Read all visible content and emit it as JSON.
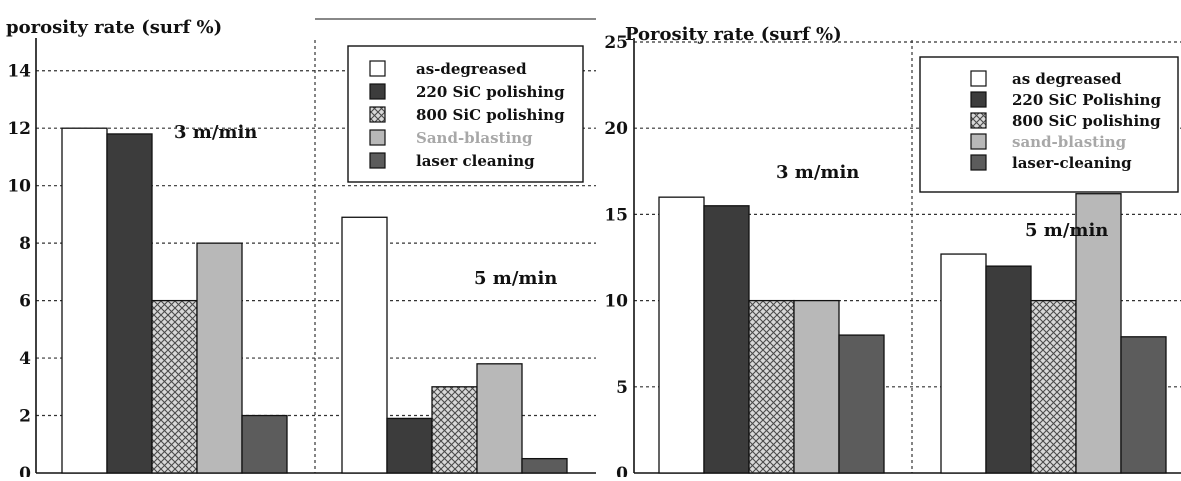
{
  "colors": {
    "background": "#ffffff",
    "axis": "#111111",
    "grid": "#333333",
    "hatch_bg": "#d8d8d8",
    "hatch_line": "#4a4a4a",
    "legend_faded_text": "#a8a8a8"
  },
  "chart_data": [
    {
      "type": "bar",
      "ylabel": "porosity rate (surf %)",
      "ylim": [
        0,
        15
      ],
      "yticks": [
        0,
        2,
        4,
        6,
        8,
        10,
        12,
        14
      ],
      "grid": true,
      "legend_position": "top-right",
      "categories": [
        "3 m/min",
        "5 m/min"
      ],
      "series": [
        {
          "name": "as-degreased",
          "values": [
            12,
            8.9
          ],
          "fill": "#ffffff",
          "pattern": "none"
        },
        {
          "name": "220 SiC polishing",
          "values": [
            11.8,
            1.9
          ],
          "fill": "#3c3c3c",
          "pattern": "none"
        },
        {
          "name": "800 SiC polishing",
          "values": [
            6,
            3
          ],
          "fill": "#cfcfcf",
          "pattern": "crosshatch"
        },
        {
          "name": "Sand-blasting",
          "values": [
            8,
            3.8
          ],
          "fill": "#b8b8b8",
          "pattern": "none"
        },
        {
          "name": "laser cleaning",
          "values": [
            2,
            0.5
          ],
          "fill": "#5c5c5c",
          "pattern": "none"
        }
      ]
    },
    {
      "type": "bar",
      "ylabel": "Porosity rate (surf %)",
      "ylim": [
        0,
        25
      ],
      "yticks": [
        0,
        5,
        10,
        15,
        20,
        25
      ],
      "grid": true,
      "legend_position": "top-right",
      "categories": [
        "3 m/min",
        "5 m/min"
      ],
      "series": [
        {
          "name": "as degreased",
          "values": [
            16,
            12.7
          ],
          "fill": "#ffffff",
          "pattern": "none"
        },
        {
          "name": "220 SiC Polishing",
          "values": [
            15.5,
            12
          ],
          "fill": "#3c3c3c",
          "pattern": "none"
        },
        {
          "name": "800 SiC polishing",
          "values": [
            10,
            10
          ],
          "fill": "#cfcfcf",
          "pattern": "crosshatch"
        },
        {
          "name": "sand-blasting",
          "values": [
            10,
            16.2
          ],
          "fill": "#b8b8b8",
          "pattern": "none"
        },
        {
          "name": "laser-cleaning",
          "values": [
            8,
            7.9
          ],
          "fill": "#5c5c5c",
          "pattern": "none"
        }
      ]
    }
  ]
}
